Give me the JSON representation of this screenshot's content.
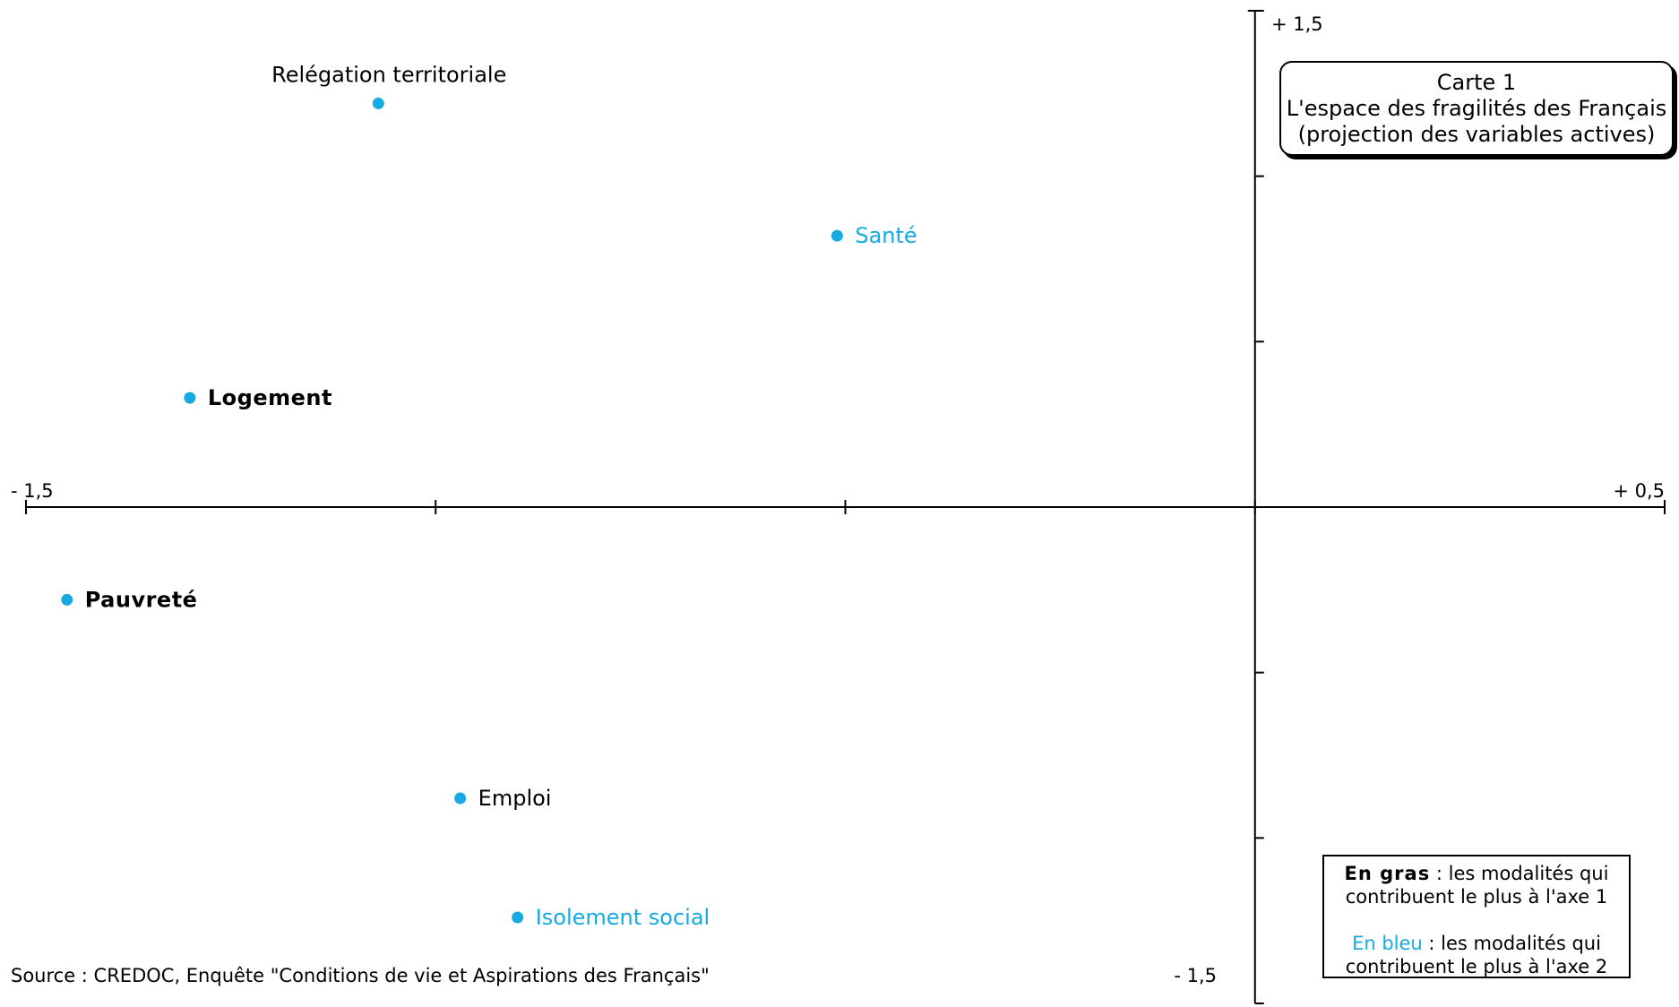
{
  "title": {
    "line1": "Carte  1",
    "line2": "L'espace des fragilités des Français",
    "line3": "(projection des variables actives)"
  },
  "legend": {
    "bold_term": "En gras",
    "bold_text": " : les modalités qui",
    "bold_text2": "contribuent le plus à l'axe 1",
    "blue_term": "En bleu",
    "blue_text": " : les modalités qui",
    "blue_text2": "contribuent le plus à l'axe 2"
  },
  "source": "Source : CREDOC, Enquête \"Conditions de vie et Aspirations des Français\"",
  "colors": {
    "point": "#17a9e1",
    "blue_text": "#17a9e1",
    "axis": "#000000"
  },
  "chart_data": {
    "type": "scatter",
    "xlim": [
      -1.5,
      0.5
    ],
    "ylim": [
      -1.5,
      1.5
    ],
    "x_tick_labels": {
      "min": "- 1,5",
      "max": "+ 0,5"
    },
    "y_tick_labels": {
      "max": "+ 1,5",
      "min": "- 1,5"
    },
    "grid": false,
    "points": [
      {
        "label": "Relégation territoriale",
        "x": -1.07,
        "y": 1.22,
        "style": "normal"
      },
      {
        "label": "Santé",
        "x": -0.51,
        "y": 0.82,
        "style": "blue"
      },
      {
        "label": "Logement",
        "x": -1.3,
        "y": 0.33,
        "style": "bold"
      },
      {
        "label": "Pauvreté",
        "x": -1.45,
        "y": -0.28,
        "style": "bold"
      },
      {
        "label": "Emploi",
        "x": -0.97,
        "y": -0.88,
        "style": "normal"
      },
      {
        "label": "Isolement social",
        "x": -0.9,
        "y": -1.24,
        "style": "blue"
      }
    ]
  }
}
